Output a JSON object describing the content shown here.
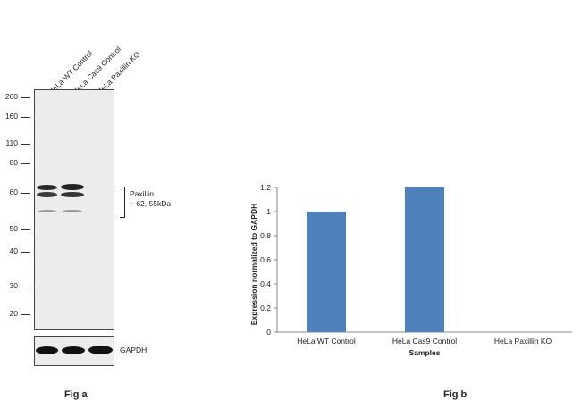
{
  "blot": {
    "lanes": [
      "HeLa WT Control",
      "HeLa Cas9 Control",
      "HeLa Paxillin KO"
    ],
    "markers": [
      "260",
      "160",
      "110",
      "80",
      "60",
      "50",
      "40",
      "30",
      "20"
    ],
    "target_name": "Paxillin",
    "target_size": "~ 62, 55kDa",
    "loading_control": "GAPDH",
    "band_color": "#1a1a1a",
    "membrane_color": "#ececec"
  },
  "figure_labels": {
    "a": "Fig a",
    "b": "Fig b"
  },
  "chart_data": {
    "type": "bar",
    "categories": [
      "HeLa WT Control",
      "HeLa Cas9 Control",
      "HeLa Paxillin KO"
    ],
    "values": [
      1.0,
      1.2,
      0.0
    ],
    "title": "",
    "xlabel": "Samples",
    "ylabel": "Expression  normalized to GAPDH",
    "ylim": [
      0,
      1.2
    ],
    "yticks": [
      "0",
      "0.2",
      "0.4",
      "0.6",
      "0.8",
      "1",
      "1.2"
    ],
    "grid": false,
    "bar_color": "#4f81bd"
  }
}
